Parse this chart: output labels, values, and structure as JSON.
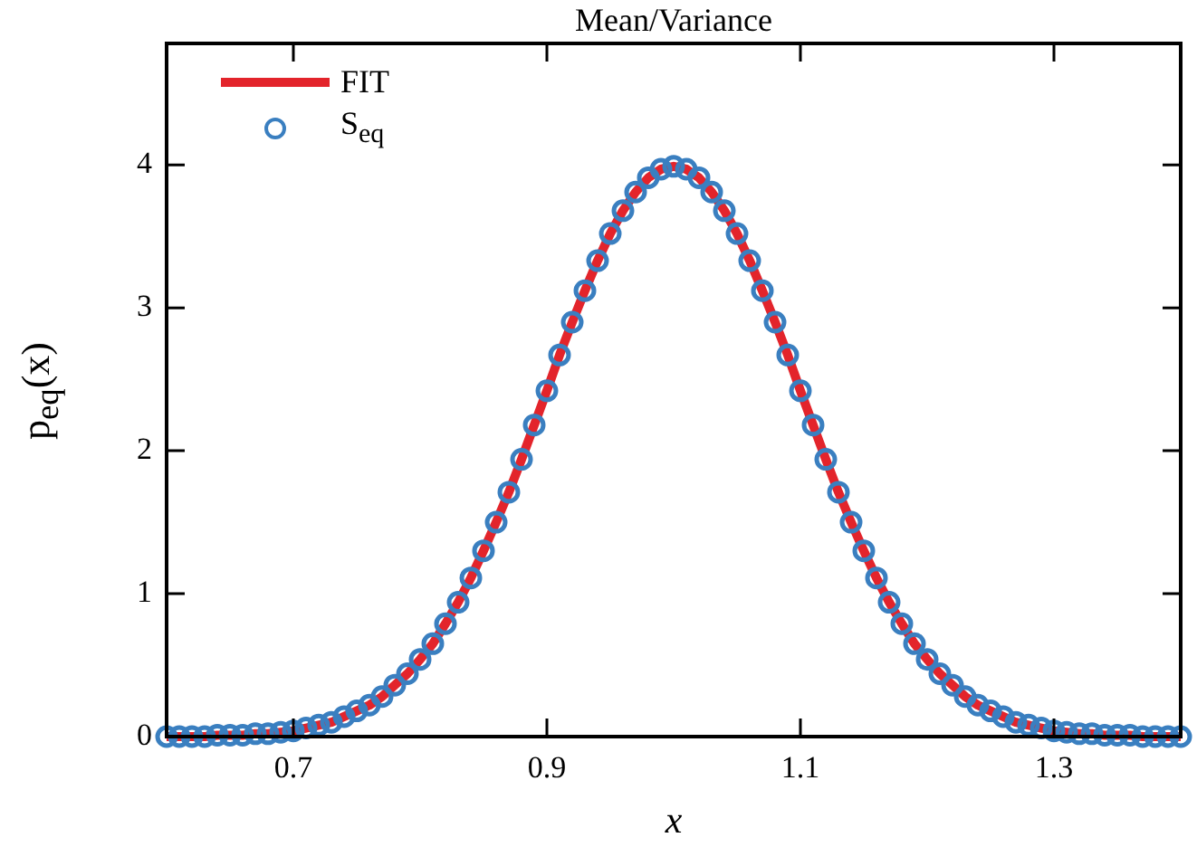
{
  "chart_data": {
    "type": "line",
    "title": "Mean/Variance",
    "xlabel": "x",
    "ylabel": "p$_{eq}$(x)",
    "x": [
      0.6,
      0.61,
      0.62,
      0.63,
      0.64,
      0.65,
      0.66,
      0.67,
      0.68,
      0.69,
      0.7,
      0.71,
      0.72,
      0.73,
      0.74,
      0.75,
      0.76,
      0.77,
      0.78,
      0.79,
      0.8,
      0.81,
      0.82,
      0.83,
      0.84,
      0.85,
      0.86,
      0.87,
      0.88,
      0.89,
      0.9,
      0.91,
      0.92,
      0.93,
      0.94,
      0.95,
      0.96,
      0.97,
      0.98,
      0.99,
      1.0,
      1.01,
      1.02,
      1.03,
      1.04,
      1.05,
      1.06,
      1.07,
      1.08,
      1.09,
      1.1,
      1.11,
      1.12,
      1.13,
      1.14,
      1.15,
      1.16,
      1.17,
      1.18,
      1.19,
      1.2,
      1.21,
      1.22,
      1.23,
      1.24,
      1.25,
      1.26,
      1.27,
      1.28,
      1.29,
      1.3,
      1.31,
      1.32,
      1.33,
      1.34,
      1.35,
      1.36,
      1.37,
      1.38,
      1.39,
      1.4
    ],
    "series": [
      {
        "name": "FIT",
        "color": "#e3242b",
        "line_style": "solid",
        "marker": "none",
        "values": [
          0,
          0,
          0,
          0,
          0.01,
          0.01,
          0.01,
          0.02,
          0.02,
          0.03,
          0.04,
          0.06,
          0.08,
          0.1,
          0.14,
          0.18,
          0.22,
          0.28,
          0.36,
          0.44,
          0.54,
          0.65,
          0.79,
          0.94,
          1.11,
          1.3,
          1.5,
          1.71,
          1.94,
          2.18,
          2.42,
          2.67,
          2.9,
          3.12,
          3.33,
          3.52,
          3.68,
          3.81,
          3.91,
          3.97,
          3.99,
          3.97,
          3.91,
          3.81,
          3.68,
          3.52,
          3.33,
          3.12,
          2.9,
          2.67,
          2.42,
          2.18,
          1.94,
          1.71,
          1.5,
          1.3,
          1.11,
          0.94,
          0.79,
          0.65,
          0.54,
          0.44,
          0.36,
          0.28,
          0.22,
          0.18,
          0.14,
          0.1,
          0.08,
          0.06,
          0.04,
          0.03,
          0.02,
          0.02,
          0.01,
          0.01,
          0.01,
          0,
          0,
          0,
          0
        ]
      },
      {
        "name": "S$_{eq}$",
        "type": "scatter",
        "color": "#3a7fc0",
        "marker": "circle",
        "values": [
          0,
          0,
          0,
          0,
          0.01,
          0.01,
          0.01,
          0.02,
          0.02,
          0.03,
          0.04,
          0.06,
          0.08,
          0.1,
          0.14,
          0.18,
          0.22,
          0.28,
          0.36,
          0.44,
          0.54,
          0.65,
          0.79,
          0.94,
          1.11,
          1.3,
          1.5,
          1.71,
          1.94,
          2.18,
          2.42,
          2.67,
          2.9,
          3.12,
          3.33,
          3.52,
          3.68,
          3.81,
          3.91,
          3.97,
          3.99,
          3.97,
          3.91,
          3.81,
          3.68,
          3.52,
          3.33,
          3.12,
          2.9,
          2.67,
          2.42,
          2.18,
          1.94,
          1.71,
          1.5,
          1.3,
          1.11,
          0.94,
          0.79,
          0.65,
          0.54,
          0.44,
          0.36,
          0.28,
          0.22,
          0.18,
          0.14,
          0.1,
          0.08,
          0.06,
          0.04,
          0.03,
          0.02,
          0.02,
          0.01,
          0.01,
          0.01,
          0,
          0,
          0,
          0
        ]
      }
    ],
    "xlim": [
      0.6,
      1.4
    ],
    "xticks": [
      0.7,
      0.9,
      1.1,
      1.3
    ],
    "ylim": [
      0,
      4.85
    ],
    "yticks": [
      0,
      1,
      2,
      3,
      4
    ],
    "grid": false,
    "legend": "top left"
  }
}
